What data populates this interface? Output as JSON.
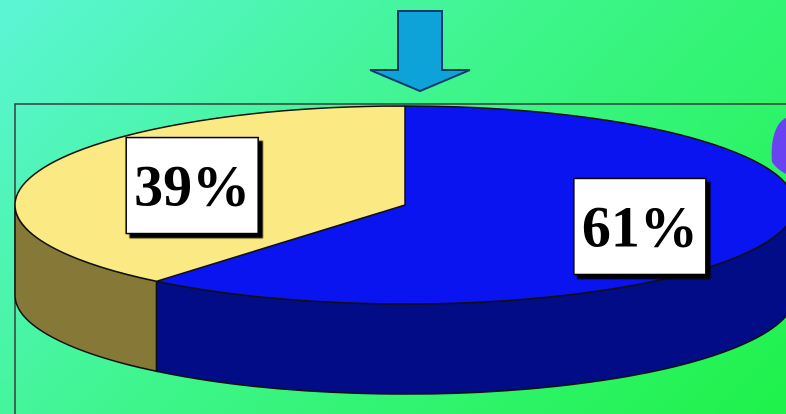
{
  "chart_data": {
    "type": "pie",
    "style": "3d",
    "slices": [
      {
        "label": "61%",
        "value": 61,
        "color": "#0a14f0",
        "side_color": "#010c86"
      },
      {
        "label": "39%",
        "value": 39,
        "color": "#fbe984",
        "side_color": "#867938"
      }
    ],
    "title": "",
    "legend": false
  },
  "colors": {
    "background_start": "#5cf5d6",
    "background_end": "#1ff24a",
    "arrow_fill": "#0ea3d8",
    "arrow_stroke": "#0a3a6e",
    "frame": "#3a3a3a",
    "accent_shape": "#6a42f2"
  },
  "icons": {
    "pointer": "down-arrow-icon"
  }
}
